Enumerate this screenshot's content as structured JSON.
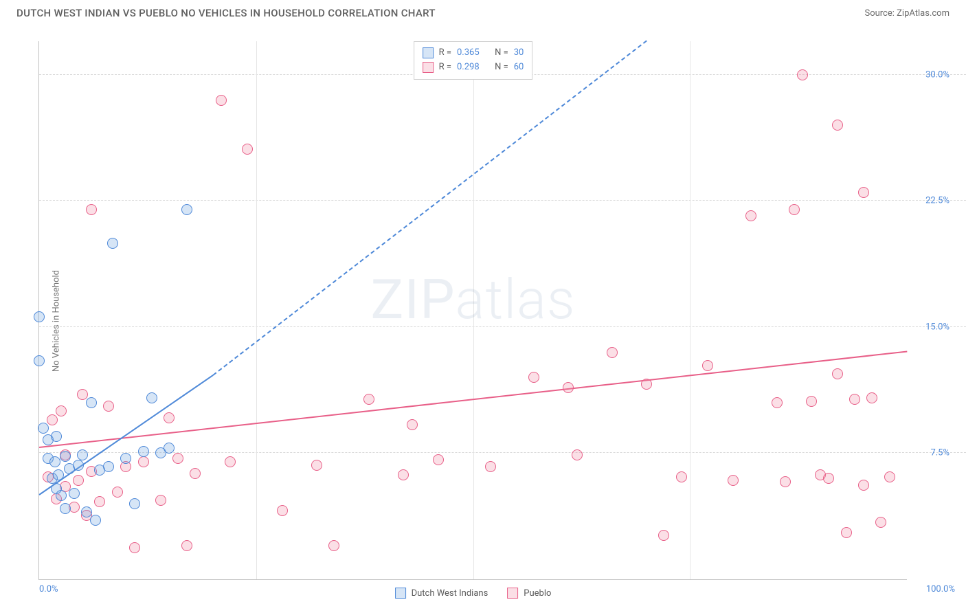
{
  "header": {
    "title": "DUTCH WEST INDIAN VS PUEBLO NO VEHICLES IN HOUSEHOLD CORRELATION CHART",
    "source_prefix": "Source: ",
    "source_link": "ZipAtlas.com"
  },
  "chart": {
    "ylabel": "No Vehicles in Household",
    "xlim": [
      0,
      100
    ],
    "ylim": [
      0,
      32
    ],
    "xtick_labels": {
      "0": "0.0%",
      "100": "100.0%"
    },
    "ytick_labels": {
      "7.5": "7.5%",
      "15": "15.0%",
      "22.5": "22.5%",
      "30": "30.0%"
    },
    "vgrid_at": [
      25,
      50,
      75
    ],
    "hgrid_at": [
      7.5,
      15,
      22.5,
      30
    ],
    "background_color": "#ffffff",
    "grid_color": "#d9d9d9",
    "axis_color": "#bfbfbf",
    "tick_color": "#4d88d8"
  },
  "series": {
    "blue": {
      "label": "Dutch West Indians",
      "stroke": "#4d88d8",
      "fill": "rgba(120,170,225,0.30)",
      "marker_radius": 8,
      "R": "0.365",
      "N": "30",
      "trend": {
        "x1": 0,
        "y1": 5.0,
        "x2_solid": 20,
        "y2_solid": 12.1,
        "x2_dash": 70,
        "y2_dash": 32.0
      },
      "points": [
        [
          0,
          15.6
        ],
        [
          0,
          13.0
        ],
        [
          0.5,
          9.0
        ],
        [
          1,
          7.2
        ],
        [
          1,
          8.3
        ],
        [
          1.5,
          6.0
        ],
        [
          1.8,
          7.0
        ],
        [
          2,
          5.4
        ],
        [
          2,
          8.5
        ],
        [
          2.2,
          6.2
        ],
        [
          2.5,
          5.0
        ],
        [
          3,
          7.3
        ],
        [
          3,
          4.2
        ],
        [
          3.5,
          6.6
        ],
        [
          4,
          5.1
        ],
        [
          4.5,
          6.8
        ],
        [
          5,
          7.4
        ],
        [
          5.5,
          4.0
        ],
        [
          6,
          10.5
        ],
        [
          6.5,
          3.5
        ],
        [
          7,
          6.5
        ],
        [
          8,
          6.7
        ],
        [
          8.5,
          20.0
        ],
        [
          10,
          7.2
        ],
        [
          11,
          4.5
        ],
        [
          12,
          7.6
        ],
        [
          13,
          10.8
        ],
        [
          14,
          7.5
        ],
        [
          15,
          7.8
        ],
        [
          17,
          22.0
        ]
      ]
    },
    "pink": {
      "label": "Pueblo",
      "stroke": "#e85f88",
      "fill": "rgba(240,140,165,0.28)",
      "marker_radius": 8,
      "R": "0.298",
      "N": "60",
      "trend": {
        "x1": 0,
        "y1": 7.8,
        "x2_solid": 100,
        "y2_solid": 13.5
      },
      "points": [
        [
          1,
          6.1
        ],
        [
          1.5,
          9.5
        ],
        [
          2,
          4.8
        ],
        [
          2.5,
          10.0
        ],
        [
          3,
          5.5
        ],
        [
          3,
          7.4
        ],
        [
          4,
          4.3
        ],
        [
          4.5,
          5.9
        ],
        [
          5,
          11.0
        ],
        [
          5.5,
          3.8
        ],
        [
          6,
          6.4
        ],
        [
          6,
          22.0
        ],
        [
          7,
          4.6
        ],
        [
          8,
          10.3
        ],
        [
          9,
          5.2
        ],
        [
          10,
          6.7
        ],
        [
          11,
          1.9
        ],
        [
          12,
          7.0
        ],
        [
          14,
          4.7
        ],
        [
          15,
          9.6
        ],
        [
          16,
          7.2
        ],
        [
          17,
          2.0
        ],
        [
          18,
          6.3
        ],
        [
          21,
          28.5
        ],
        [
          22,
          7.0
        ],
        [
          24,
          25.6
        ],
        [
          28,
          4.1
        ],
        [
          32,
          6.8
        ],
        [
          34,
          2.0
        ],
        [
          38,
          10.7
        ],
        [
          42,
          6.2
        ],
        [
          43,
          9.2
        ],
        [
          46,
          7.1
        ],
        [
          52,
          6.7
        ],
        [
          57,
          12.0
        ],
        [
          61,
          11.4
        ],
        [
          62,
          7.4
        ],
        [
          66,
          13.5
        ],
        [
          70,
          11.6
        ],
        [
          72,
          2.6
        ],
        [
          74,
          6.1
        ],
        [
          77,
          12.7
        ],
        [
          80,
          5.9
        ],
        [
          82,
          21.6
        ],
        [
          85,
          10.5
        ],
        [
          86,
          5.8
        ],
        [
          87,
          22.0
        ],
        [
          88,
          30.0
        ],
        [
          89,
          10.6
        ],
        [
          90,
          6.2
        ],
        [
          91,
          6.0
        ],
        [
          92,
          12.2
        ],
        [
          92,
          27.0
        ],
        [
          93,
          2.8
        ],
        [
          94,
          10.7
        ],
        [
          95,
          23.0
        ],
        [
          95,
          5.6
        ],
        [
          96,
          10.8
        ],
        [
          97,
          3.4
        ],
        [
          98,
          6.1
        ]
      ]
    }
  },
  "legend_top_labels": {
    "R": "R =",
    "N": "N ="
  },
  "watermark": {
    "zip": "ZIP",
    "atlas": "atlas"
  }
}
